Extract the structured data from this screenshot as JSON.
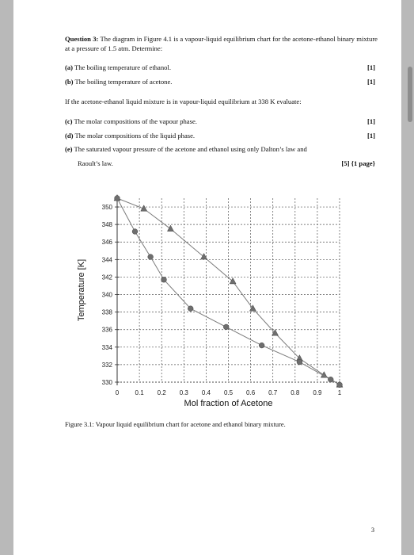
{
  "question": {
    "label": "Question 3:",
    "intro": "The diagram in Figure 4.1 is a vapour-liquid equilibrium chart for the acetone-ethanol binary mixture at a pressure of 1.5 atm. Determine:",
    "parts_a": [
      {
        "label": "(a)",
        "text": "The boiling temperature of ethanol.",
        "marks": "[1]"
      },
      {
        "label": "(b)",
        "text": "The boiling temperature of acetone.",
        "marks": "[1]"
      }
    ],
    "condition": "If the acetone-ethanol liquid mixture is in vapour-liquid equilibrium at 338 K evaluate:",
    "parts_b": [
      {
        "label": "(c)",
        "text": "The molar compositions of the vapour phase.",
        "marks": "[1]"
      },
      {
        "label": "(d)",
        "text": "The molar compositions of the liquid phase.",
        "marks": "[1]"
      }
    ],
    "part_e": {
      "label": "(e)",
      "text_line1": "The saturated vapour pressure of the acetone and ethanol using only Dalton’s law and",
      "text_line2": "Raoult’s law.",
      "marks": "[5] {1 page}"
    }
  },
  "caption": "Figure 3.1: Vapour liquid equilibrium chart for acetone and ethanol binary mixture.",
  "page_number": "3",
  "chart_data": {
    "type": "line",
    "xlabel": "Mol fraction of Acetone",
    "ylabel": "Temperature [K]",
    "xlim": [
      0,
      1
    ],
    "ylim": [
      330,
      351
    ],
    "xticks": [
      "0",
      "0.1",
      "0.2",
      "0.3",
      "0.4",
      "0.5",
      "0.6",
      "0.7",
      "0.8",
      "0.9",
      "1"
    ],
    "yticks": [
      "330",
      "332",
      "334",
      "336",
      "338",
      "340",
      "342",
      "344",
      "346",
      "348",
      "350"
    ],
    "grid": true,
    "series": [
      {
        "marker": "triangle",
        "color": "#6e6e6e",
        "x": [
          0,
          0.12,
          0.24,
          0.39,
          0.52,
          0.61,
          0.71,
          0.82,
          0.93,
          1.0
        ],
        "y": [
          351,
          349.8,
          347.5,
          344.3,
          341.5,
          338.4,
          335.6,
          332.7,
          330.8,
          329.7
        ]
      },
      {
        "marker": "circle",
        "color": "#6e6e6e",
        "x": [
          0,
          0.08,
          0.15,
          0.21,
          0.33,
          0.49,
          0.65,
          0.82,
          0.96,
          1.0
        ],
        "y": [
          351,
          347.2,
          344.3,
          341.7,
          338.4,
          336.3,
          334.2,
          332.3,
          330.3,
          329.7
        ]
      }
    ]
  }
}
